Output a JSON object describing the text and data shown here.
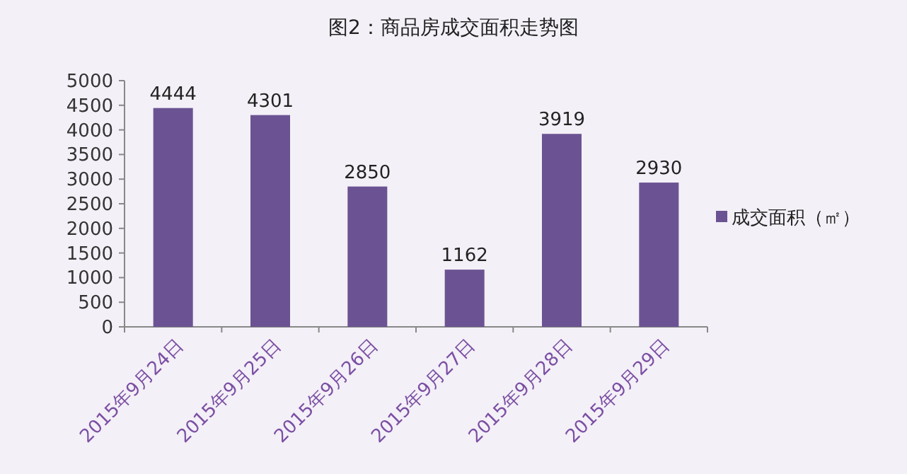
{
  "chart_data": {
    "type": "bar",
    "title": "图2：商品房成交面积走势图",
    "categories": [
      "2015年9月24日",
      "2015年9月25日",
      "2015年9月26日",
      "2015年9月27日",
      "2015年9月28日",
      "2015年9月29日"
    ],
    "series": [
      {
        "name": "成交面积（㎡）",
        "color": "#6b5393",
        "values": [
          4444,
          4301,
          2850,
          1162,
          3919,
          2930
        ]
      }
    ],
    "ylim": [
      0,
      5000
    ],
    "yticks": [
      0,
      500,
      1000,
      1500,
      2000,
      2500,
      3000,
      3500,
      4000,
      4500,
      5000
    ],
    "data_labels": true,
    "grid": false,
    "legend": "right"
  }
}
